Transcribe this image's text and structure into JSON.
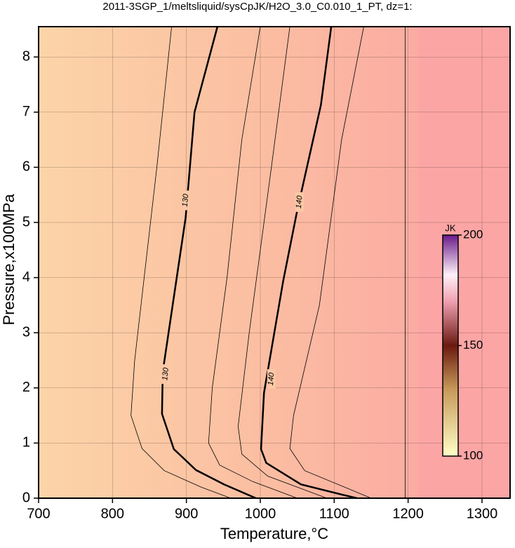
{
  "chart_data": {
    "type": "contour",
    "title": "2011-3SGP_1/meltsliquid/sysCpJK/H2O_3.0_C0.010_1_PT, dz=1:",
    "x_label": "Temperature,°C",
    "y_label": "Pressure,x100MPa",
    "xlim": [
      700,
      1338
    ],
    "ylim": [
      0,
      8.55
    ],
    "xticks": [
      700,
      800,
      900,
      1000,
      1100,
      1200,
      1300
    ],
    "yticks": [
      0,
      1,
      2,
      3,
      4,
      5,
      6,
      7,
      8
    ],
    "grid": true,
    "line_color": "#000000",
    "series": [
      {
        "x": [
          880,
          860,
          830,
          825,
          840,
          870,
          920,
          960
        ],
        "y": [
          8.55,
          6,
          2.5,
          1.5,
          0.9,
          0.5,
          0.2,
          0
        ],
        "bold": false
      },
      {
        "x": [
          942,
          911,
          899,
          868,
          867,
          883,
          913,
          951,
          994
        ],
        "y": [
          8.55,
          7.0,
          5.09,
          2.29,
          1.53,
          0.89,
          0.51,
          0.25,
          0
        ],
        "bold": true
      },
      {
        "x": [
          1000,
          975,
          955,
          935,
          930,
          945,
          990,
          1050
        ],
        "y": [
          8.55,
          6.5,
          4,
          2,
          1,
          0.6,
          0.3,
          0
        ],
        "bold": false
      },
      {
        "x": [
          1040,
          1015,
          985,
          970,
          975,
          1010,
          1090
        ],
        "y": [
          8.55,
          6,
          3,
          1.3,
          0.8,
          0.4,
          0
        ],
        "bold": false
      },
      {
        "x": [
          1096,
          1082,
          1050,
          1031,
          1005,
          1001,
          1008,
          1055,
          1112,
          1131
        ],
        "y": [
          8.55,
          7.13,
          5.22,
          3.94,
          1.91,
          0.89,
          0.64,
          0.25,
          0.06,
          0
        ],
        "bold": true
      },
      {
        "x": [
          1140,
          1110,
          1080,
          1045,
          1040,
          1060,
          1150
        ],
        "y": [
          8.55,
          6.5,
          3.5,
          1.5,
          0.9,
          0.5,
          0
        ],
        "bold": false
      },
      {
        "x": [
          1196,
          1196
        ],
        "y": [
          8.55,
          0
        ],
        "bold": false
      }
    ],
    "contour_labels": [
      {
        "level": 130,
        "x": 899,
        "y": 5.4
      },
      {
        "level": 130,
        "x": 872,
        "y": 2.25
      },
      {
        "level": 140,
        "x": 1053,
        "y": 5.37
      },
      {
        "level": 140,
        "x": 1015,
        "y": 2.16
      }
    ],
    "colorbar": {
      "label": "JK",
      "lim": [
        100,
        200
      ],
      "ticks": [
        100,
        150,
        200
      ]
    }
  }
}
